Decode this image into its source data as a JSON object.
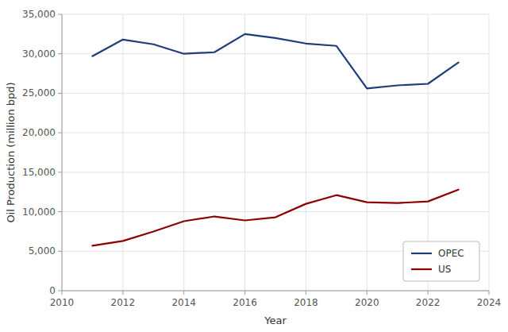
{
  "chart_data": {
    "type": "line",
    "xlabel": "Year",
    "ylabel": "Oil Production (million bpd)",
    "x": [
      2011,
      2012,
      2013,
      2014,
      2015,
      2016,
      2017,
      2018,
      2019,
      2020,
      2021,
      2022,
      2023
    ],
    "series": [
      {
        "name": "OPEC",
        "color": "#1f3d7a",
        "values": [
          29700,
          31800,
          31200,
          30000,
          30200,
          32500,
          32000,
          31300,
          31000,
          25600,
          26000,
          26200,
          28900
        ]
      },
      {
        "name": "US",
        "color": "#8b0000",
        "values": [
          5700,
          6300,
          7500,
          8800,
          9400,
          8900,
          9300,
          11000,
          12100,
          11200,
          11100,
          11300,
          12800
        ]
      }
    ],
    "xlim": [
      2010,
      2024
    ],
    "ylim": [
      0,
      35000
    ],
    "xticks": [
      2010,
      2012,
      2014,
      2016,
      2018,
      2020,
      2022,
      2024
    ],
    "yticks": [
      0,
      {
        "value": 5000,
        "label": "5,000"
      },
      {
        "value": 10000,
        "label": "10,000"
      },
      {
        "value": 15000,
        "label": "15,000"
      },
      {
        "value": 20000,
        "label": "20,000"
      },
      {
        "value": 25000,
        "label": "25,000"
      },
      {
        "value": 30000,
        "label": "30,000"
      },
      {
        "value": 35000,
        "label": "35,000"
      }
    ],
    "grid": true,
    "legend": "lower right"
  }
}
